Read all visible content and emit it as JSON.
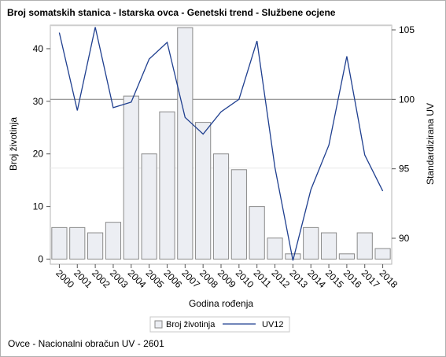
{
  "title": "Broj somatskih stanica - Istarska ovca - Genetski trend - Službene ocjene",
  "footnote": "Ovce - Nacionalni obračun UV - 2601",
  "chart_data": {
    "type": "bar",
    "categories": [
      "2000",
      "2001",
      "2002",
      "2003",
      "2004",
      "2005",
      "2006",
      "2007",
      "2008",
      "2009",
      "2010",
      "2011",
      "2012",
      "2013",
      "2014",
      "2015",
      "2016",
      "2017",
      "2018"
    ],
    "series": [
      {
        "name": "Broj životinja",
        "type": "bar",
        "axis": "left",
        "values": [
          6,
          6,
          5,
          7,
          31,
          20,
          28,
          44,
          26,
          20,
          17,
          10,
          4,
          1,
          6,
          5,
          1,
          5,
          2
        ]
      },
      {
        "name": "UV12",
        "type": "line",
        "axis": "right",
        "values": [
          104.8,
          99.2,
          105.2,
          99.4,
          99.8,
          102.9,
          104.1,
          98.7,
          97.5,
          99.1,
          100.0,
          104.2,
          95.1,
          88.4,
          93.5,
          96.7,
          103.1,
          96.0,
          93.4
        ]
      }
    ],
    "xlabel": "Godina rođenja",
    "ylabel": "Broj životinja",
    "y2label": "Standardizirana UV",
    "ylim": [
      0,
      45
    ],
    "yticks": [
      0,
      10,
      20,
      30,
      40
    ],
    "y2lim": [
      88.2,
      106.2
    ],
    "y2ticks": [
      90,
      95,
      100,
      105
    ],
    "reference_line_y2": 100,
    "legend_position": "bottom",
    "colors": {
      "bar_fill": "#eceef3",
      "bar_stroke": "#8a8a8a",
      "line": "#1f3f8f",
      "reference": "#8c8c8c"
    }
  }
}
